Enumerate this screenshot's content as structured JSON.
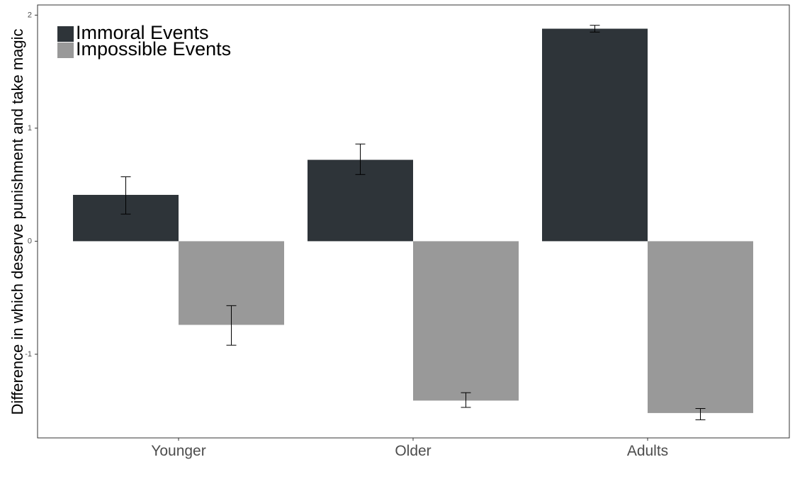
{
  "chart_data": {
    "type": "bar",
    "categories": [
      "Younger",
      "Older",
      "Adults"
    ],
    "series": [
      {
        "name": "Immoral Events",
        "color": "#2e3439",
        "values": [
          0.41,
          0.72,
          1.88
        ],
        "error_low": [
          0.24,
          0.59,
          1.85
        ],
        "error_high": [
          0.57,
          0.86,
          1.91
        ]
      },
      {
        "name": "Impossible Events",
        "color": "#999999",
        "values": [
          -0.74,
          -1.41,
          -1.52
        ],
        "error_low": [
          -0.92,
          -1.47,
          -1.58
        ],
        "error_high": [
          -0.57,
          -1.34,
          -1.48
        ]
      }
    ],
    "title": "",
    "xlabel": "",
    "ylabel": "Difference in which deserve punishment and take magic",
    "ylim": [
      -1.74,
      2.09
    ],
    "yticks": [
      -1,
      0,
      1,
      2
    ],
    "grid": false,
    "legend_position": "top-left"
  }
}
